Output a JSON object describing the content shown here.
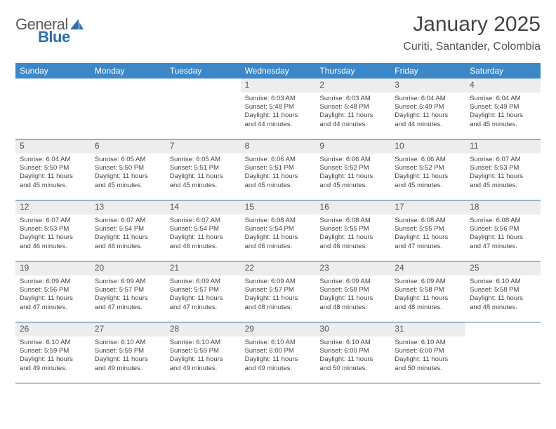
{
  "brand": {
    "part1": "General",
    "part2": "Blue"
  },
  "title": "January 2025",
  "location": "Curiti, Santander, Colombia",
  "accent_color": "#3b87c8",
  "rule_color": "#3b6fa0",
  "daynum_bg": "#ededed",
  "day_names": [
    "Sunday",
    "Monday",
    "Tuesday",
    "Wednesday",
    "Thursday",
    "Friday",
    "Saturday"
  ],
  "weeks": [
    [
      null,
      null,
      null,
      {
        "d": "1",
        "sr": "Sunrise: 6:03 AM",
        "ss": "Sunset: 5:48 PM",
        "dl1": "Daylight: 11 hours",
        "dl2": "and 44 minutes."
      },
      {
        "d": "2",
        "sr": "Sunrise: 6:03 AM",
        "ss": "Sunset: 5:48 PM",
        "dl1": "Daylight: 11 hours",
        "dl2": "and 44 minutes."
      },
      {
        "d": "3",
        "sr": "Sunrise: 6:04 AM",
        "ss": "Sunset: 5:49 PM",
        "dl1": "Daylight: 11 hours",
        "dl2": "and 44 minutes."
      },
      {
        "d": "4",
        "sr": "Sunrise: 6:04 AM",
        "ss": "Sunset: 5:49 PM",
        "dl1": "Daylight: 11 hours",
        "dl2": "and 45 minutes."
      }
    ],
    [
      {
        "d": "5",
        "sr": "Sunrise: 6:04 AM",
        "ss": "Sunset: 5:50 PM",
        "dl1": "Daylight: 11 hours",
        "dl2": "and 45 minutes."
      },
      {
        "d": "6",
        "sr": "Sunrise: 6:05 AM",
        "ss": "Sunset: 5:50 PM",
        "dl1": "Daylight: 11 hours",
        "dl2": "and 45 minutes."
      },
      {
        "d": "7",
        "sr": "Sunrise: 6:05 AM",
        "ss": "Sunset: 5:51 PM",
        "dl1": "Daylight: 11 hours",
        "dl2": "and 45 minutes."
      },
      {
        "d": "8",
        "sr": "Sunrise: 6:06 AM",
        "ss": "Sunset: 5:51 PM",
        "dl1": "Daylight: 11 hours",
        "dl2": "and 45 minutes."
      },
      {
        "d": "9",
        "sr": "Sunrise: 6:06 AM",
        "ss": "Sunset: 5:52 PM",
        "dl1": "Daylight: 11 hours",
        "dl2": "and 45 minutes."
      },
      {
        "d": "10",
        "sr": "Sunrise: 6:06 AM",
        "ss": "Sunset: 5:52 PM",
        "dl1": "Daylight: 11 hours",
        "dl2": "and 45 minutes."
      },
      {
        "d": "11",
        "sr": "Sunrise: 6:07 AM",
        "ss": "Sunset: 5:53 PM",
        "dl1": "Daylight: 11 hours",
        "dl2": "and 45 minutes."
      }
    ],
    [
      {
        "d": "12",
        "sr": "Sunrise: 6:07 AM",
        "ss": "Sunset: 5:53 PM",
        "dl1": "Daylight: 11 hours",
        "dl2": "and 46 minutes."
      },
      {
        "d": "13",
        "sr": "Sunrise: 6:07 AM",
        "ss": "Sunset: 5:54 PM",
        "dl1": "Daylight: 11 hours",
        "dl2": "and 46 minutes."
      },
      {
        "d": "14",
        "sr": "Sunrise: 6:07 AM",
        "ss": "Sunset: 5:54 PM",
        "dl1": "Daylight: 11 hours",
        "dl2": "and 46 minutes."
      },
      {
        "d": "15",
        "sr": "Sunrise: 6:08 AM",
        "ss": "Sunset: 5:54 PM",
        "dl1": "Daylight: 11 hours",
        "dl2": "and 46 minutes."
      },
      {
        "d": "16",
        "sr": "Sunrise: 6:08 AM",
        "ss": "Sunset: 5:55 PM",
        "dl1": "Daylight: 11 hours",
        "dl2": "and 46 minutes."
      },
      {
        "d": "17",
        "sr": "Sunrise: 6:08 AM",
        "ss": "Sunset: 5:55 PM",
        "dl1": "Daylight: 11 hours",
        "dl2": "and 47 minutes."
      },
      {
        "d": "18",
        "sr": "Sunrise: 6:08 AM",
        "ss": "Sunset: 5:56 PM",
        "dl1": "Daylight: 11 hours",
        "dl2": "and 47 minutes."
      }
    ],
    [
      {
        "d": "19",
        "sr": "Sunrise: 6:09 AM",
        "ss": "Sunset: 5:56 PM",
        "dl1": "Daylight: 11 hours",
        "dl2": "and 47 minutes."
      },
      {
        "d": "20",
        "sr": "Sunrise: 6:09 AM",
        "ss": "Sunset: 5:57 PM",
        "dl1": "Daylight: 11 hours",
        "dl2": "and 47 minutes."
      },
      {
        "d": "21",
        "sr": "Sunrise: 6:09 AM",
        "ss": "Sunset: 5:57 PM",
        "dl1": "Daylight: 11 hours",
        "dl2": "and 47 minutes."
      },
      {
        "d": "22",
        "sr": "Sunrise: 6:09 AM",
        "ss": "Sunset: 5:57 PM",
        "dl1": "Daylight: 11 hours",
        "dl2": "and 48 minutes."
      },
      {
        "d": "23",
        "sr": "Sunrise: 6:09 AM",
        "ss": "Sunset: 5:58 PM",
        "dl1": "Daylight: 11 hours",
        "dl2": "and 48 minutes."
      },
      {
        "d": "24",
        "sr": "Sunrise: 6:09 AM",
        "ss": "Sunset: 5:58 PM",
        "dl1": "Daylight: 11 hours",
        "dl2": "and 48 minutes."
      },
      {
        "d": "25",
        "sr": "Sunrise: 6:10 AM",
        "ss": "Sunset: 5:58 PM",
        "dl1": "Daylight: 11 hours",
        "dl2": "and 48 minutes."
      }
    ],
    [
      {
        "d": "26",
        "sr": "Sunrise: 6:10 AM",
        "ss": "Sunset: 5:59 PM",
        "dl1": "Daylight: 11 hours",
        "dl2": "and 49 minutes."
      },
      {
        "d": "27",
        "sr": "Sunrise: 6:10 AM",
        "ss": "Sunset: 5:59 PM",
        "dl1": "Daylight: 11 hours",
        "dl2": "and 49 minutes."
      },
      {
        "d": "28",
        "sr": "Sunrise: 6:10 AM",
        "ss": "Sunset: 5:59 PM",
        "dl1": "Daylight: 11 hours",
        "dl2": "and 49 minutes."
      },
      {
        "d": "29",
        "sr": "Sunrise: 6:10 AM",
        "ss": "Sunset: 6:00 PM",
        "dl1": "Daylight: 11 hours",
        "dl2": "and 49 minutes."
      },
      {
        "d": "30",
        "sr": "Sunrise: 6:10 AM",
        "ss": "Sunset: 6:00 PM",
        "dl1": "Daylight: 11 hours",
        "dl2": "and 50 minutes."
      },
      {
        "d": "31",
        "sr": "Sunrise: 6:10 AM",
        "ss": "Sunset: 6:00 PM",
        "dl1": "Daylight: 11 hours",
        "dl2": "and 50 minutes."
      },
      null
    ]
  ]
}
